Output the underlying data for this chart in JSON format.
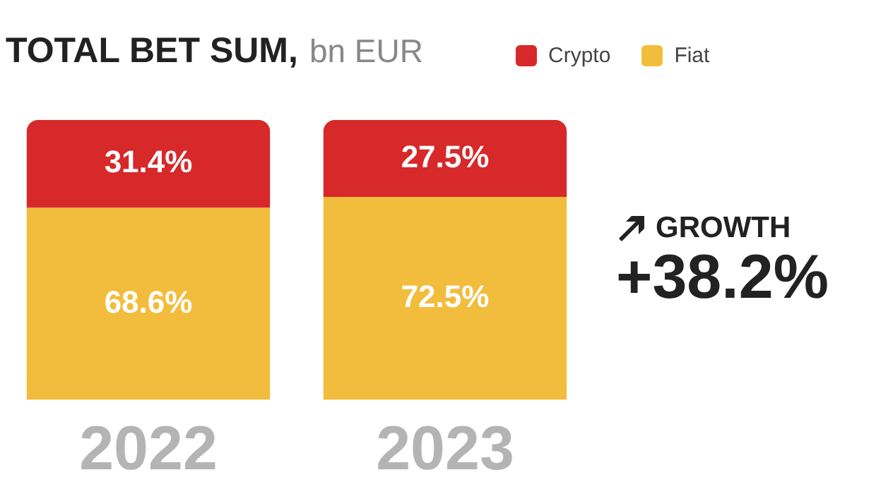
{
  "chart_data": {
    "type": "bar",
    "title": "TOTAL BET SUM,",
    "subtitle": "bn EUR",
    "categories": [
      "2022",
      "2023"
    ],
    "stacked": true,
    "legend": "top",
    "grid": false,
    "tick_labels": "x",
    "series": [
      {
        "name": "Fiat",
        "color": "#f2bd3c",
        "values": [
          68.6,
          72.5
        ],
        "value_labels": [
          "68.6%",
          "72.5%"
        ]
      },
      {
        "name": "Crypto",
        "color": "#d7282a",
        "values": [
          31.4,
          27.5
        ],
        "value_labels": [
          "31.4%",
          "27.5%"
        ]
      }
    ],
    "annotations": [
      "GROWTH",
      "+38.2%"
    ]
  }
}
